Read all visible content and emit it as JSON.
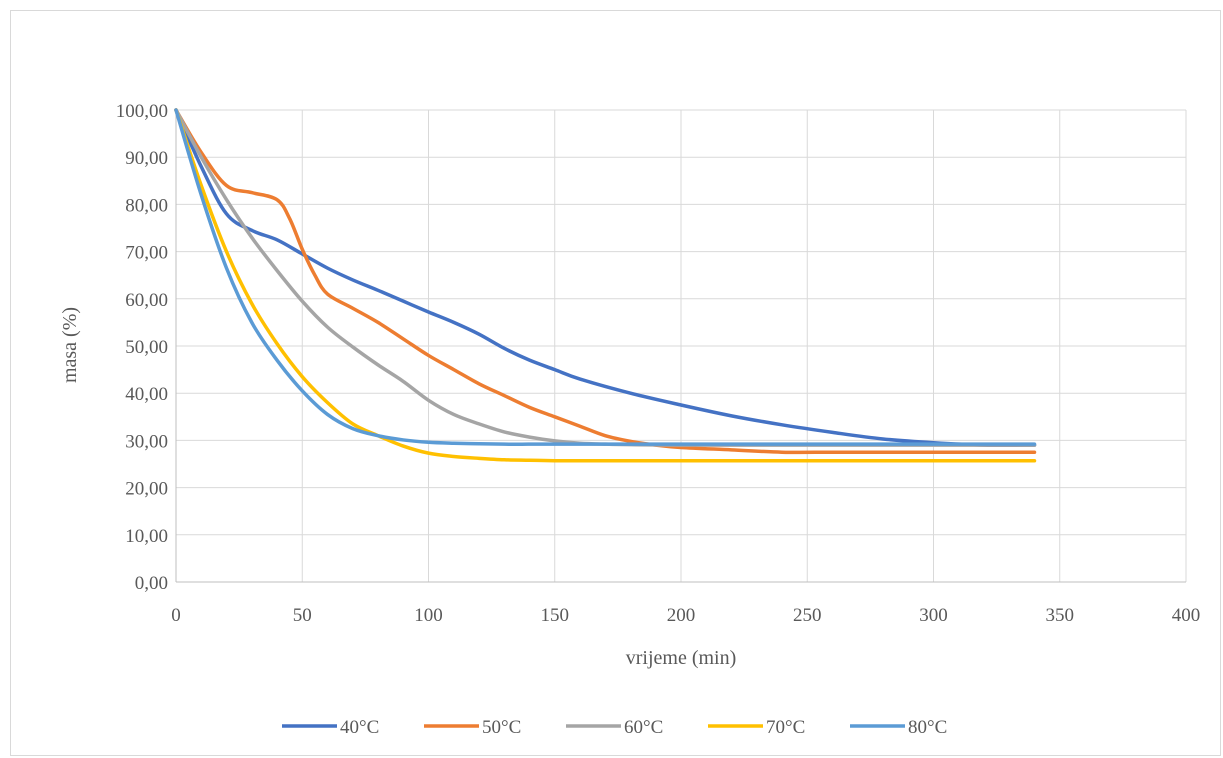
{
  "chart_data": {
    "type": "line",
    "title": "",
    "xlabel": "vrijeme (min)",
    "ylabel": "masa (%)",
    "xlim": [
      0,
      400
    ],
    "ylim": [
      0,
      100
    ],
    "x_ticks": [
      0,
      50,
      100,
      150,
      200,
      250,
      300,
      350,
      400
    ],
    "y_ticks": [
      0,
      10,
      20,
      30,
      40,
      50,
      60,
      70,
      80,
      90,
      100
    ],
    "y_tick_labels": [
      "0,00",
      "10,00",
      "20,00",
      "30,00",
      "40,00",
      "50,00",
      "60,00",
      "70,00",
      "80,00",
      "90,00",
      "100,00"
    ],
    "grid": true,
    "legend_position": "bottom",
    "series": [
      {
        "name": "40°C",
        "color": "#4472C4",
        "x": [
          0,
          10,
          20,
          30,
          40,
          50,
          60,
          70,
          80,
          90,
          100,
          110,
          120,
          130,
          140,
          150,
          160,
          180,
          200,
          220,
          240,
          260,
          280,
          300,
          320,
          340
        ],
        "y": [
          100,
          88,
          78,
          74.5,
          72.5,
          69.5,
          66.5,
          64,
          61.8,
          59.5,
          57.2,
          55,
          52.5,
          49.5,
          47,
          45,
          43,
          40,
          37.5,
          35.2,
          33.3,
          31.7,
          30.3,
          29.5,
          29,
          29
        ]
      },
      {
        "name": "50°C",
        "color": "#ED7D31",
        "x": [
          0,
          10,
          20,
          30,
          40,
          45,
          50,
          55,
          60,
          70,
          80,
          90,
          100,
          110,
          120,
          130,
          140,
          150,
          160,
          170,
          180,
          190,
          200,
          220,
          240,
          260,
          280,
          300,
          320,
          340
        ],
        "y": [
          100,
          91,
          84,
          82.5,
          81,
          77,
          70.5,
          65,
          61,
          58,
          55,
          51.5,
          48,
          45,
          42,
          39.5,
          37,
          35,
          33,
          31,
          29.8,
          29,
          28.5,
          28,
          27.5,
          27.5,
          27.5,
          27.5,
          27.5,
          27.5
        ]
      },
      {
        "name": "60°C",
        "color": "#A5A5A5",
        "x": [
          0,
          10,
          20,
          30,
          40,
          50,
          60,
          70,
          80,
          90,
          100,
          110,
          120,
          130,
          140,
          150,
          160,
          170,
          180,
          200,
          220,
          240,
          260,
          280,
          300,
          320,
          340
        ],
        "y": [
          100,
          90,
          81,
          73,
          66,
          59.5,
          54,
          49.8,
          46,
          42.5,
          38.5,
          35.5,
          33.5,
          31.8,
          30.7,
          29.9,
          29.4,
          29.2,
          29.1,
          29,
          29,
          29,
          29,
          29,
          29,
          29,
          29
        ]
      },
      {
        "name": "70°C",
        "color": "#FFC000",
        "x": [
          0,
          10,
          20,
          30,
          40,
          50,
          60,
          70,
          80,
          90,
          100,
          110,
          120,
          130,
          140,
          150,
          160,
          180,
          200,
          220,
          240,
          260,
          280,
          300,
          320,
          340
        ],
        "y": [
          100,
          84,
          70,
          59,
          50.5,
          43.5,
          38,
          33.5,
          31,
          28.8,
          27.3,
          26.6,
          26.2,
          25.9,
          25.8,
          25.7,
          25.7,
          25.7,
          25.7,
          25.7,
          25.7,
          25.7,
          25.7,
          25.7,
          25.7,
          25.7
        ]
      },
      {
        "name": "80°C",
        "color": "#5B9BD5",
        "x": [
          0,
          10,
          20,
          30,
          40,
          50,
          60,
          70,
          80,
          90,
          100,
          110,
          120,
          130,
          140,
          150,
          160,
          180,
          200,
          220,
          240,
          260,
          280,
          300,
          320,
          340
        ],
        "y": [
          100,
          82,
          66.5,
          55,
          47,
          40.5,
          35.5,
          32.5,
          31,
          30.1,
          29.6,
          29.4,
          29.3,
          29.2,
          29.2,
          29.2,
          29.2,
          29.2,
          29.2,
          29.2,
          29.2,
          29.2,
          29.2,
          29.2,
          29.2,
          29.2
        ]
      }
    ]
  }
}
